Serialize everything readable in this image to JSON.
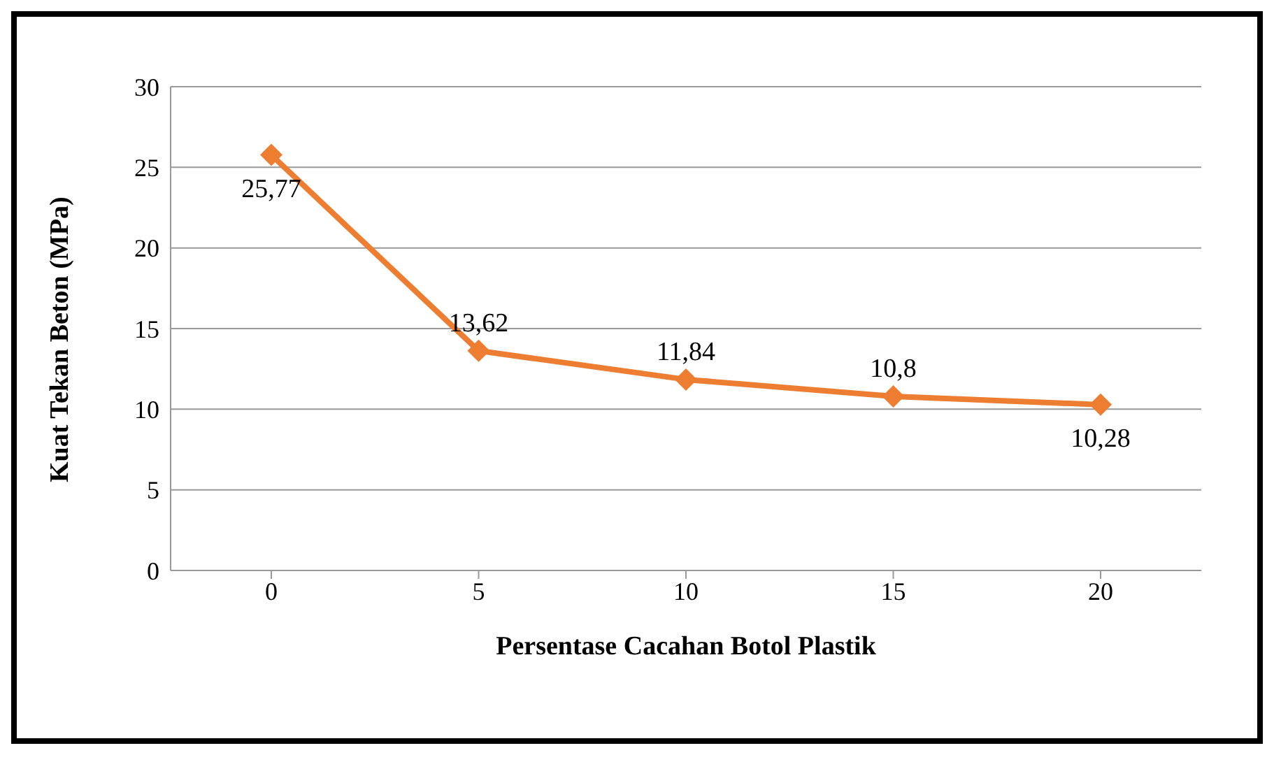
{
  "chart_data": {
    "type": "line",
    "xlabel": "Persentase Cacahan  Botol Plastik",
    "ylabel": "Kuat Tekan  Beton (MPa)",
    "categories": [
      "0",
      "5",
      "10",
      "15",
      "20"
    ],
    "series": [
      {
        "color": "#ed7d31",
        "values": [
          25.77,
          13.62,
          11.84,
          10.8,
          10.28
        ],
        "value_labels": [
          "25,77",
          "13,62",
          "11,84",
          "10,8",
          "10,28"
        ]
      }
    ],
    "ylim": [
      0,
      30
    ],
    "yticks": [
      0,
      5,
      10,
      15,
      20,
      25,
      30
    ],
    "grid": "y",
    "marker": "diamond",
    "line_style": "solid"
  }
}
